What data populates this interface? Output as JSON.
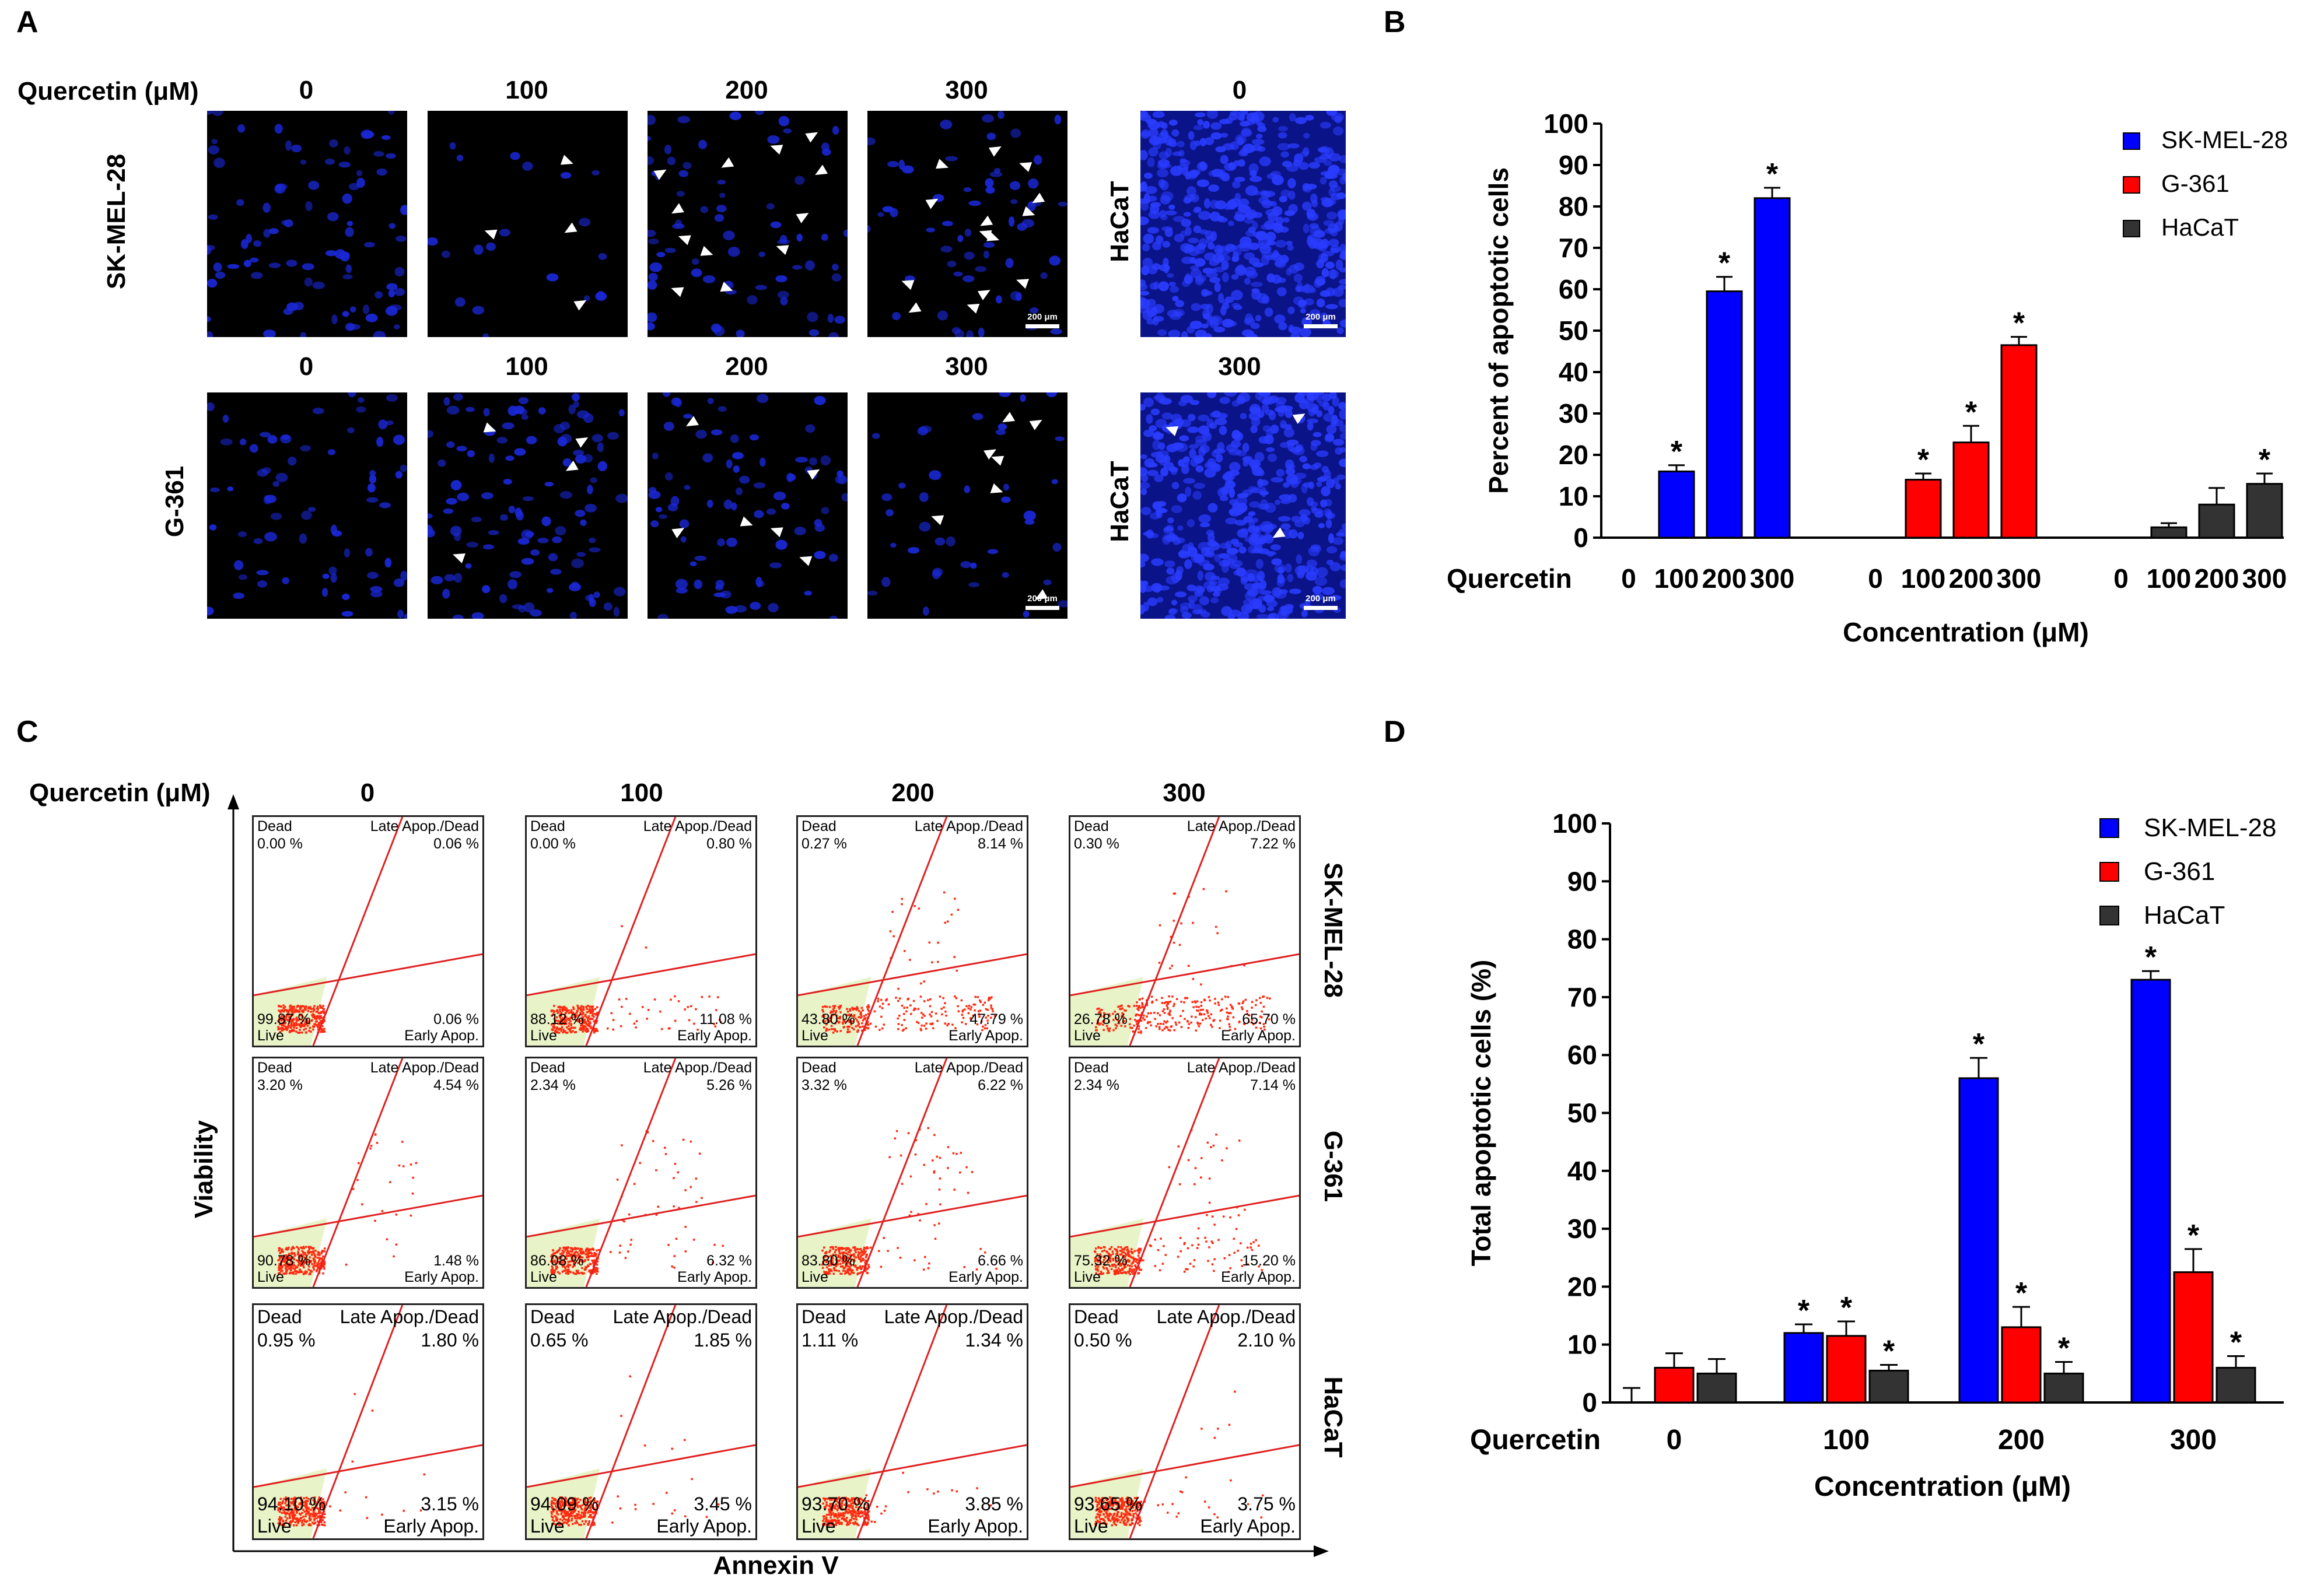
{
  "panels": {
    "A": "A",
    "B": "B",
    "C": "C",
    "D": "D"
  },
  "panel_a": {
    "quercetin_label": "Quercetin (μM)",
    "top_row_concs": [
      "0",
      "100",
      "200",
      "300"
    ],
    "bottom_row_concs": [
      "0",
      "100",
      "200",
      "300"
    ],
    "hacat_top_conc": "0",
    "hacat_bottom_conc": "300",
    "row_labels": [
      "SK-MEL-28",
      "G-361"
    ],
    "hacat_label": "HaCaT",
    "scale_bar": "200 μm"
  },
  "panel_c": {
    "quercetin_label": "Quercetin (μM)",
    "concs": [
      "0",
      "100",
      "200",
      "300"
    ],
    "row_labels": [
      "SK-MEL-28",
      "G-361",
      "HaCaT"
    ],
    "y_axis": "Viability",
    "x_axis": "Annexin V",
    "quadrant_labels": {
      "dead": "Dead",
      "late": "Late Apop./Dead",
      "live": "Live",
      "early": "Early Apop."
    },
    "rows": [
      [
        {
          "dead": "0.00 %",
          "late": "0.06 %",
          "live": "99.87 %",
          "early": "0.06 %"
        },
        {
          "dead": "0.00 %",
          "late": "0.80 %",
          "live": "88.12 %",
          "early": "11.08 %"
        },
        {
          "dead": "0.27 %",
          "late": "8.14 %",
          "live": "43.80 %",
          "early": "47.79 %"
        },
        {
          "dead": "0.30 %",
          "late": "7.22 %",
          "live": "26.78 %",
          "early": "65.70 %"
        }
      ],
      [
        {
          "dead": "3.20 %",
          "late": "4.54 %",
          "live": "90.78 %",
          "early": "1.48 %"
        },
        {
          "dead": "2.34 %",
          "late": "5.26 %",
          "live": "86.08 %",
          "early": "6.32 %"
        },
        {
          "dead": "3.32 %",
          "late": "6.22 %",
          "live": "83.80 %",
          "early": "6.66 %"
        },
        {
          "dead": "2.34 %",
          "late": "7.14 %",
          "live": "75.32 %",
          "early": "15.20 %"
        }
      ],
      [
        {
          "dead": "0.95 %",
          "late": "1.80 %",
          "live": "94.10 %",
          "early": "3.15 %"
        },
        {
          "dead": "0.65 %",
          "late": "1.85 %",
          "live": "94.09 %",
          "early": "3.45 %"
        },
        {
          "dead": "1.11 %",
          "late": "1.34 %",
          "live": "93.70 %",
          "early": "3.85 %"
        },
        {
          "dead": "0.50 %",
          "late": "2.10 %",
          "live": "93.65 %",
          "early": "3.75 %"
        }
      ]
    ]
  },
  "colors": {
    "sk_mel_28": "#0000ff",
    "g_361": "#ff0000",
    "hacat": "#333333",
    "flow_dots": "#ff2a10",
    "gate": "#e8f3c8"
  },
  "chart_data": [
    {
      "id": "B",
      "type": "bar",
      "title": "",
      "ylabel": "Percent of apoptotic cells",
      "xlabel": "Concentration (μM)",
      "x_prefix": "Quercetin",
      "ylim": [
        0,
        100
      ],
      "yticks": [
        0,
        10,
        20,
        30,
        40,
        50,
        60,
        70,
        80,
        90,
        100
      ],
      "legend": [
        "SK-MEL-28",
        "G-361",
        "HaCaT"
      ],
      "legend_position": "top-right",
      "groups": [
        {
          "name": "SK-MEL-28",
          "categories": [
            "0",
            "100",
            "200",
            "300"
          ],
          "values": [
            0,
            16,
            59.5,
            82
          ],
          "errors": [
            0,
            1.5,
            3.5,
            2.5
          ],
          "significant": [
            false,
            true,
            true,
            true
          ]
        },
        {
          "name": "G-361",
          "categories": [
            "0",
            "100",
            "200",
            "300"
          ],
          "values": [
            0,
            14,
            23,
            46.5
          ],
          "errors": [
            0,
            1.5,
            4,
            2
          ],
          "significant": [
            false,
            true,
            true,
            true
          ]
        },
        {
          "name": "HaCaT",
          "categories": [
            "0",
            "100",
            "200",
            "300"
          ],
          "values": [
            0,
            2.5,
            8,
            13
          ],
          "errors": [
            0,
            1,
            4,
            2.5
          ],
          "significant": [
            false,
            false,
            false,
            true
          ]
        }
      ],
      "sig_mark": "*"
    },
    {
      "id": "D",
      "type": "bar",
      "title": "",
      "ylabel": "Total apoptotic cells (%)",
      "xlabel": "Concentration (μM)",
      "x_prefix": "Quercetin",
      "ylim": [
        0,
        100
      ],
      "yticks": [
        0,
        10,
        20,
        30,
        40,
        50,
        60,
        70,
        80,
        90,
        100
      ],
      "categories": [
        "0",
        "100",
        "200",
        "300"
      ],
      "legend_position": "top-right",
      "series": [
        {
          "name": "SK-MEL-28",
          "values": [
            0,
            12,
            56,
            73
          ],
          "errors": [
            2.5,
            1.5,
            3.5,
            1.5
          ],
          "significant": [
            false,
            true,
            true,
            true
          ]
        },
        {
          "name": "G-361",
          "values": [
            6,
            11.5,
            13,
            22.5
          ],
          "errors": [
            2.5,
            2.5,
            3.5,
            4
          ],
          "significant": [
            false,
            true,
            true,
            true
          ]
        },
        {
          "name": "HaCaT",
          "values": [
            5,
            5.5,
            5,
            6
          ],
          "errors": [
            2.5,
            1,
            2,
            2
          ],
          "significant": [
            false,
            true,
            true,
            true
          ]
        }
      ],
      "sig_mark": "*"
    }
  ]
}
